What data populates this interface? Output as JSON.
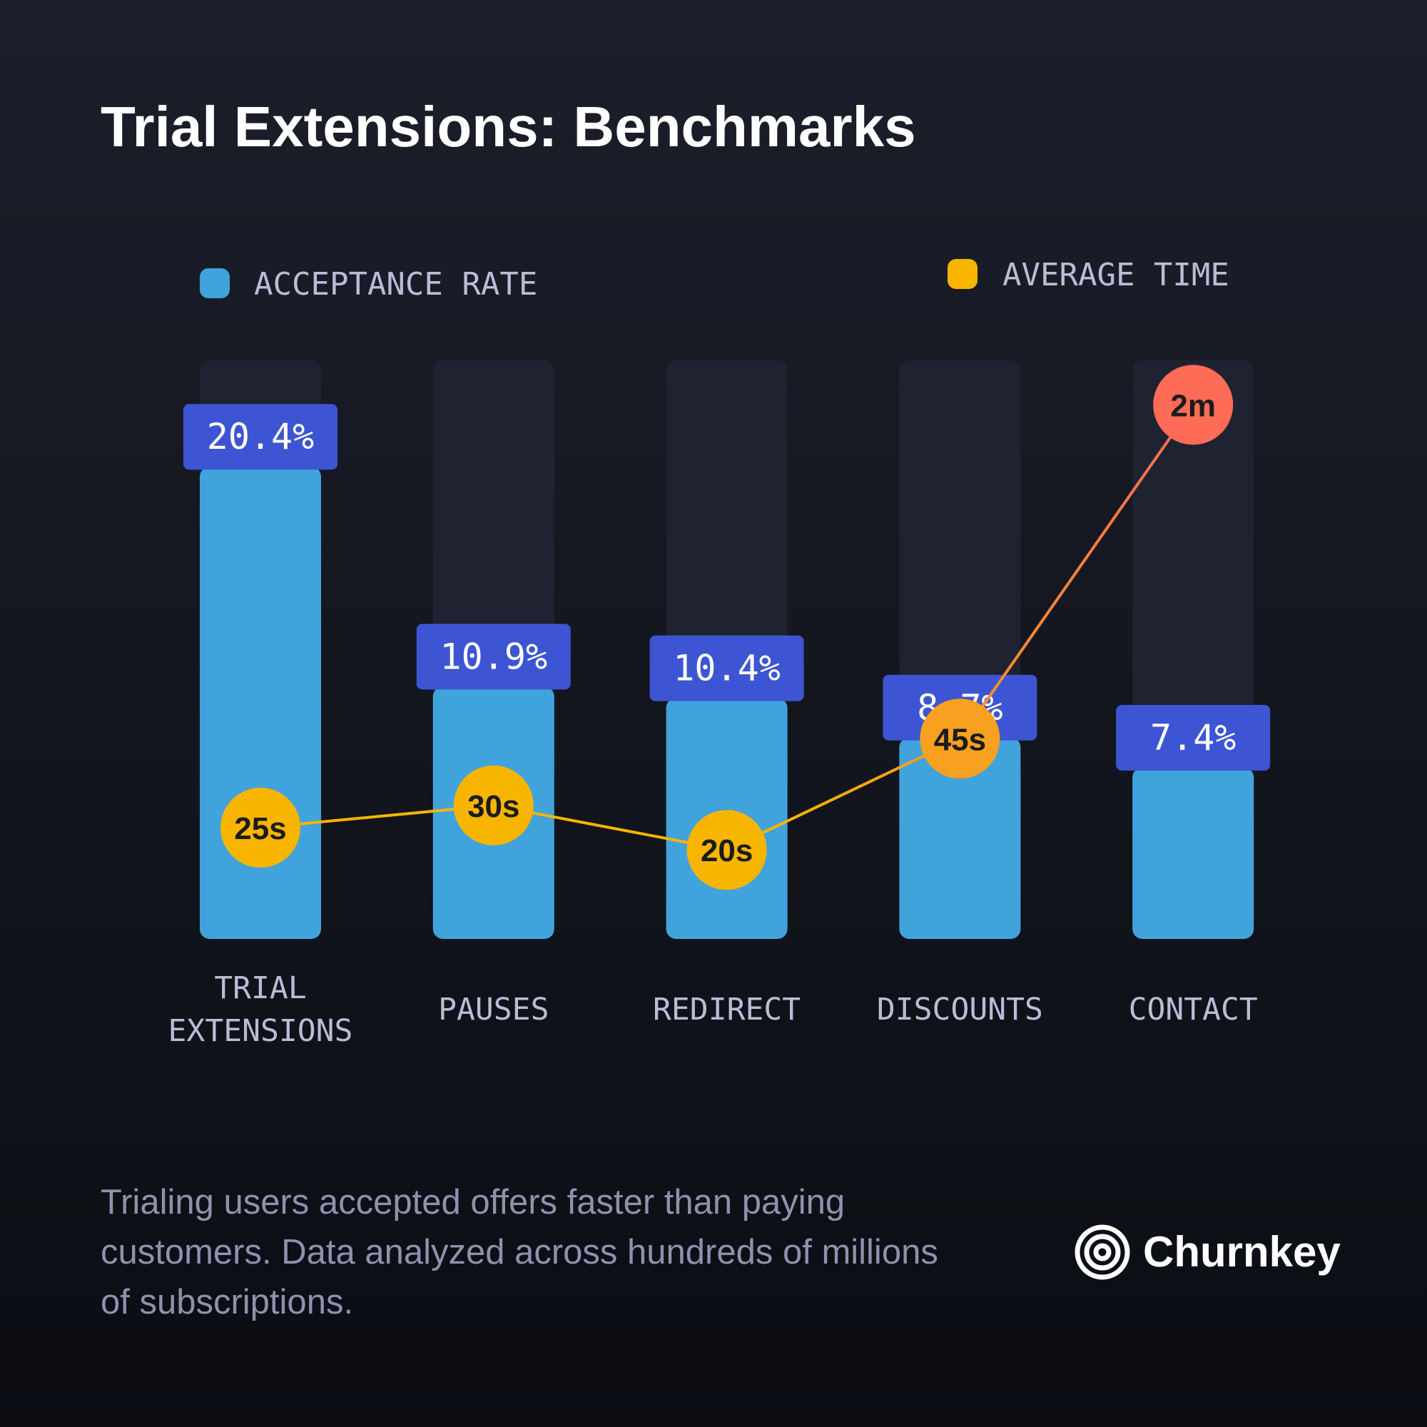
{
  "chart_data": {
    "type": "bar-line",
    "title": "Trial Extensions: Benchmarks",
    "categories": [
      "TRIAL EXTENSIONS",
      "PAUSES",
      "REDIRECT",
      "DISCOUNTS",
      "CONTACT"
    ],
    "series": [
      {
        "name": "ACCEPTANCE RATE",
        "color": "#41a3dc",
        "label_color": "#3d55d2",
        "values": [
          20.4,
          10.9,
          10.4,
          8.7,
          7.4
        ],
        "value_labels": [
          "20.4%",
          "10.9%",
          "10.4%",
          "8.7%",
          "7.4%"
        ]
      },
      {
        "name": "AVERAGE TIME",
        "color": "#f7b500",
        "axis": "y2",
        "values": [
          25,
          30,
          20,
          45,
          120
        ],
        "value_labels": [
          "25s",
          "30s",
          "20s",
          "45s",
          "2m"
        ],
        "point_colors": [
          "#f7b500",
          "#f7b500",
          "#f7b500",
          "#f8a01f",
          "#fe6b57"
        ]
      }
    ],
    "ylim": [
      0,
      25
    ],
    "y2lim": [
      0,
      130
    ],
    "footnote": "Trialing users accepted offers faster than paying customers. Data analyzed across hundreds of millions of subscriptions.",
    "brand": "Churnkey"
  }
}
